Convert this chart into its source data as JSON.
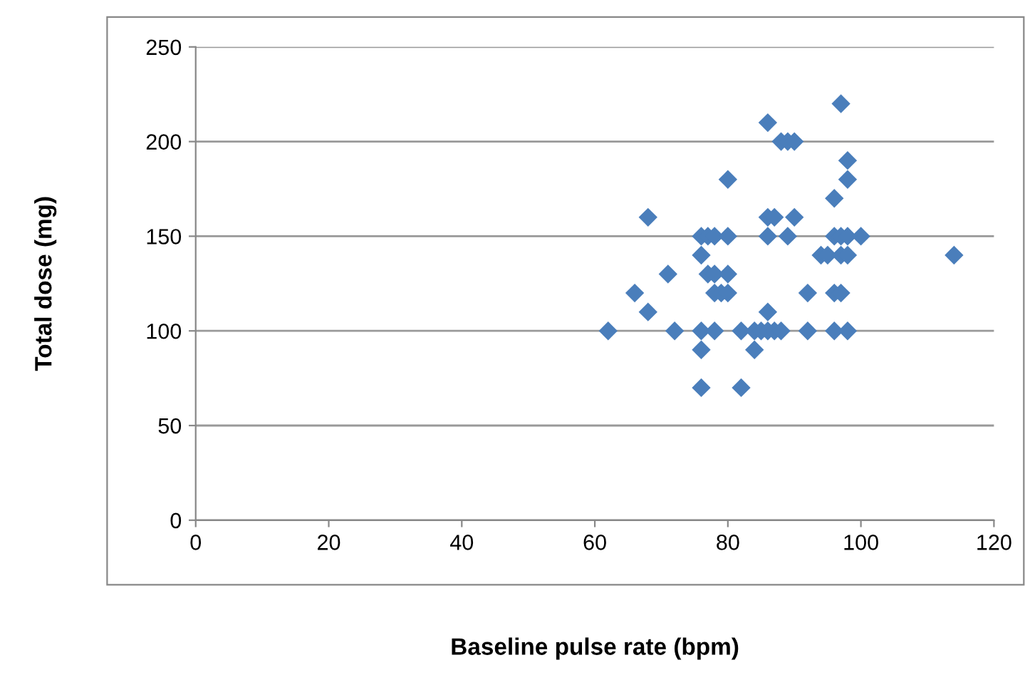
{
  "chart_data": {
    "type": "scatter",
    "xlabel": "Baseline pulse rate (bpm)",
    "ylabel": "Total dose (mg)",
    "xlim": [
      0,
      120
    ],
    "xticks": [
      0,
      20,
      40,
      60,
      80,
      100,
      120
    ],
    "ylim": [
      0,
      250
    ],
    "yticks": [
      0,
      50,
      100,
      150,
      200,
      250
    ],
    "grid": "y",
    "legend": false,
    "marker": "diamond",
    "series": [
      {
        "color": "#4a7ebb",
        "x": [
          62,
          66,
          68,
          68,
          71,
          72,
          76,
          76,
          76,
          76,
          76,
          77,
          77,
          78,
          78,
          78,
          78,
          79,
          80,
          80,
          80,
          80,
          82,
          82,
          84,
          84,
          85,
          86,
          86,
          86,
          86,
          86,
          87,
          87,
          88,
          88,
          89,
          89,
          90,
          90,
          92,
          92,
          94,
          95,
          96,
          96,
          96,
          96,
          97,
          97,
          97,
          97,
          98,
          98,
          98,
          98,
          98,
          100,
          114
        ],
        "values": [
          100,
          120,
          160,
          110,
          130,
          100,
          150,
          140,
          100,
          90,
          70,
          150,
          130,
          150,
          130,
          120,
          100,
          120,
          180,
          150,
          130,
          120,
          100,
          70,
          100,
          90,
          100,
          210,
          160,
          150,
          110,
          100,
          160,
          100,
          200,
          100,
          200,
          150,
          200,
          160,
          120,
          100,
          140,
          140,
          170,
          150,
          120,
          100,
          220,
          150,
          140,
          120,
          190,
          180,
          150,
          140,
          100,
          150,
          140
        ]
      }
    ]
  }
}
